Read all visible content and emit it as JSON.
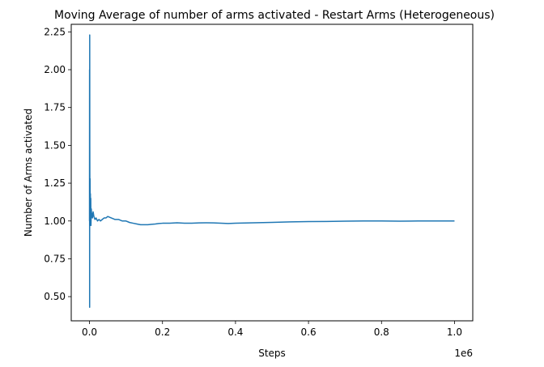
{
  "chart_data": {
    "type": "line",
    "title": "Moving Average of number of arms activated - Restart Arms (Heterogeneous)",
    "xlabel": "Steps",
    "ylabel": "Number of Arms activated",
    "x_offset_label": "1e6",
    "xlim": [
      -50000,
      1050000
    ],
    "ylim": [
      0.34,
      2.3
    ],
    "grid": false,
    "line_color": "#1f77b4",
    "x_ticks": [
      {
        "value": 0,
        "label": "0.0"
      },
      {
        "value": 200000,
        "label": "0.2"
      },
      {
        "value": 400000,
        "label": "0.4"
      },
      {
        "value": 600000,
        "label": "0.6"
      },
      {
        "value": 800000,
        "label": "0.8"
      },
      {
        "value": 1000000,
        "label": "1.0"
      }
    ],
    "y_ticks": [
      {
        "value": 0.5,
        "label": "0.50"
      },
      {
        "value": 0.75,
        "label": "0.75"
      },
      {
        "value": 1.0,
        "label": "1.00"
      },
      {
        "value": 1.25,
        "label": "1.25"
      },
      {
        "value": 1.5,
        "label": "1.50"
      },
      {
        "value": 1.75,
        "label": "1.75"
      },
      {
        "value": 2.0,
        "label": "2.00"
      },
      {
        "value": 2.25,
        "label": "2.25"
      }
    ],
    "series": [
      {
        "name": "",
        "x": [
          0,
          200,
          400,
          600,
          800,
          1200,
          1600,
          2000,
          2500,
          3000,
          3500,
          4000,
          5000,
          6000,
          7000,
          8000,
          10000,
          12000,
          15000,
          18000,
          22000,
          26000,
          30000,
          35000,
          40000,
          45000,
          50000,
          60000,
          70000,
          80000,
          90000,
          100000,
          110000,
          120000,
          130000,
          140000,
          150000,
          160000,
          170000,
          180000,
          190000,
          200000,
          220000,
          240000,
          260000,
          280000,
          300000,
          320000,
          340000,
          360000,
          380000,
          400000,
          450000,
          500000,
          550000,
          600000,
          650000,
          700000,
          750000,
          800000,
          850000,
          900000,
          950000,
          1000000
        ],
        "y": [
          1.0,
          2.0,
          0.43,
          2.23,
          1.5,
          0.97,
          1.28,
          1.1,
          1.18,
          1.0,
          1.15,
          0.97,
          1.08,
          1.03,
          1.05,
          1.02,
          1.06,
          1.03,
          1.01,
          1.02,
          1.0,
          1.01,
          1.0,
          1.01,
          1.02,
          1.02,
          1.03,
          1.02,
          1.01,
          1.01,
          1.0,
          1.0,
          0.99,
          0.985,
          0.98,
          0.975,
          0.975,
          0.975,
          0.978,
          0.98,
          0.983,
          0.985,
          0.985,
          0.988,
          0.985,
          0.985,
          0.987,
          0.988,
          0.987,
          0.985,
          0.983,
          0.985,
          0.988,
          0.991,
          0.994,
          0.996,
          0.997,
          0.999,
          1.0,
          1.0,
          0.999,
          1.0,
          1.0,
          1.0
        ]
      }
    ]
  }
}
